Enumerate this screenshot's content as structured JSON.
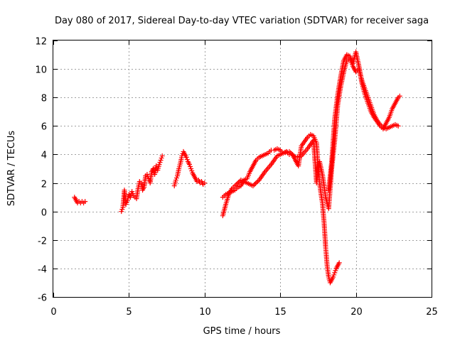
{
  "chart_data": {
    "type": "scatter",
    "title": "Day 080 of 2017, Sidereal Day-to-day VTEC variation (SDTVAR) for receiver saga",
    "xlabel": "GPS time / hours",
    "ylabel": "SDTVAR / TECUs",
    "xlim": [
      0,
      25
    ],
    "ylim": [
      -6,
      12
    ],
    "xticks": [
      "0",
      "5",
      "10",
      "15",
      "20",
      "25"
    ],
    "yticks": [
      "-6",
      "-4",
      "-2",
      "0",
      "2",
      "4",
      "6",
      "8",
      "10",
      "12"
    ],
    "grid": true,
    "marker": "+",
    "color": "#ff0000",
    "legend": "none",
    "series": [
      {
        "x": [
          1.4,
          1.5,
          1.6,
          1.7,
          1.8,
          1.9,
          2.0,
          2.1,
          4.5,
          4.6,
          4.7,
          4.8,
          4.9,
          5.0,
          5.1,
          5.2,
          5.3,
          5.4,
          5.5,
          5.6,
          5.7,
          5.8,
          5.9,
          6.0,
          6.1,
          6.2,
          6.3,
          6.4,
          6.5,
          6.6,
          6.7,
          6.8,
          6.9,
          7.0,
          7.1,
          7.2,
          8.0,
          8.1,
          8.2,
          8.3,
          8.4,
          8.5,
          8.6,
          8.7,
          8.8,
          8.9,
          9.0,
          9.1,
          9.2,
          9.3,
          9.4,
          9.5,
          9.6,
          9.7,
          9.8,
          9.9,
          10.0,
          11.2,
          11.4,
          11.6,
          11.8,
          12.0,
          12.2,
          12.4,
          12.6,
          12.8,
          13.0,
          13.2,
          13.4,
          13.6,
          13.8,
          14.0,
          14.2,
          14.4,
          14.6,
          14.8,
          15.0,
          15.2,
          15.4,
          15.6,
          15.8,
          16.0,
          16.2,
          16.4,
          16.6,
          16.8,
          17.0,
          17.2,
          17.4,
          17.5,
          17.6,
          17.7,
          17.8,
          17.9,
          18.0,
          18.1,
          18.2,
          18.3,
          18.4,
          18.5,
          18.6,
          18.7,
          18.8,
          18.9,
          18.2,
          18.4,
          18.6,
          18.8,
          19.0,
          19.2,
          19.4,
          19.6,
          19.8,
          20.0,
          20.2,
          20.4,
          20.6,
          20.8,
          21.0,
          21.2,
          21.4,
          21.6,
          21.8,
          22.0,
          22.2,
          22.4,
          22.6,
          22.8,
          22.9
        ],
        "y": [
          1.0,
          0.8,
          0.6,
          0.7,
          0.6,
          0.7,
          0.6,
          0.7,
          0.0,
          0.3,
          1.5,
          0.5,
          0.8,
          1.2,
          1.0,
          1.4,
          1.1,
          1.0,
          0.9,
          1.6,
          2.1,
          2.0,
          1.5,
          1.7,
          2.5,
          2.6,
          2.3,
          2.0,
          2.8,
          3.0,
          2.6,
          3.2,
          2.9,
          3.3,
          3.6,
          3.9,
          1.8,
          2.2,
          2.5,
          3.0,
          3.4,
          3.9,
          4.2,
          4.0,
          3.8,
          3.5,
          3.3,
          3.0,
          2.7,
          2.5,
          2.3,
          2.1,
          2.2,
          2.0,
          2.1,
          1.9,
          2.0,
          1.0,
          1.2,
          1.3,
          1.4,
          1.5,
          1.7,
          1.8,
          2.2,
          2.3,
          2.8,
          3.2,
          3.6,
          3.8,
          3.9,
          4.0,
          4.1,
          4.3,
          4.3,
          4.4,
          4.3,
          4.1,
          4.2,
          4.0,
          4.0,
          3.6,
          3.2,
          4.6,
          4.9,
          5.2,
          5.4,
          5.3,
          4.8,
          3.2,
          2.0,
          1.2,
          0.5,
          -0.8,
          -2.5,
          -3.8,
          -4.6,
          -5.0,
          -4.8,
          -4.6,
          -4.3,
          -4.0,
          -3.8,
          -3.6,
          1.5,
          3.5,
          6.5,
          8.2,
          9.5,
          10.6,
          11.0,
          10.9,
          10.4,
          11.2,
          10.2,
          9.0,
          8.2,
          7.6,
          7.0,
          6.6,
          6.3,
          6.0,
          5.8,
          6.2,
          6.6,
          7.2,
          7.6,
          8.0,
          8.1
        ]
      },
      {
        "x": [
          11.2,
          11.4,
          11.6,
          11.8,
          12.0,
          12.4,
          12.8,
          13.2,
          13.6,
          14.0,
          14.4,
          14.8,
          15.2,
          15.6,
          16.0,
          16.4,
          16.8,
          17.2,
          17.4,
          17.6,
          17.8,
          18.0,
          18.2,
          18.4,
          18.6,
          18.8,
          19.0,
          19.2,
          19.4,
          19.6,
          19.8,
          20.0,
          20.2,
          20.4,
          20.6,
          20.8,
          21.0,
          21.2,
          21.4,
          21.6,
          21.8,
          22.0,
          22.2,
          22.4,
          22.6,
          22.8
        ],
        "y": [
          -0.3,
          0.5,
          1.2,
          1.6,
          1.8,
          2.2,
          2.0,
          1.8,
          2.2,
          2.8,
          3.3,
          3.9,
          4.1,
          4.2,
          3.8,
          3.9,
          4.4,
          5.0,
          2.0,
          3.5,
          2.5,
          1.0,
          0.2,
          3.0,
          5.0,
          7.5,
          8.8,
          9.8,
          10.6,
          10.8,
          10.2,
          9.8,
          10.0,
          9.2,
          8.6,
          8.0,
          7.4,
          6.8,
          6.4,
          6.1,
          5.9,
          5.8,
          5.9,
          6.0,
          6.1,
          6.0
        ]
      }
    ]
  }
}
